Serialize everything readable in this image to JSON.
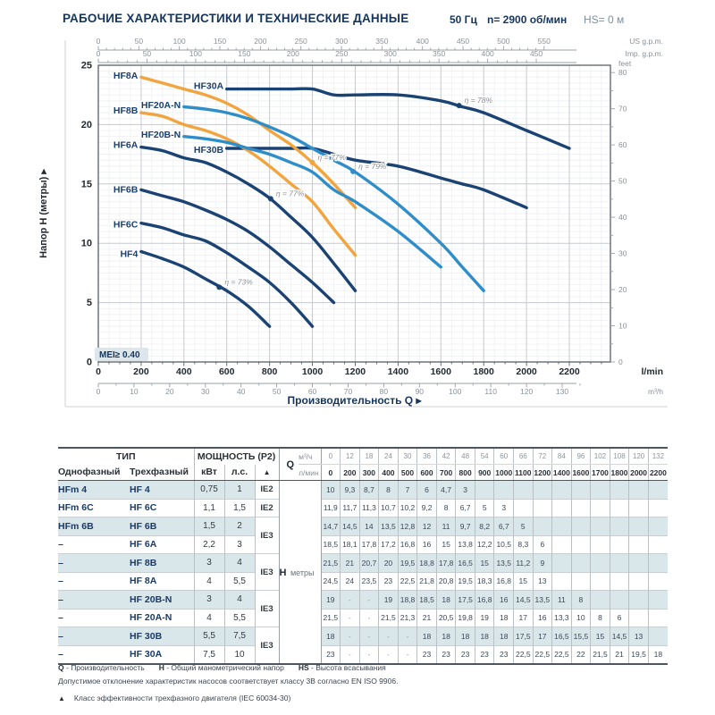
{
  "page": {
    "title": "РАБОЧИЕ ХАРАКТЕРИСТИКИ И ТЕХНИЧЕСКИЕ ДАННЫЕ",
    "frequency": "50 Гц",
    "speed": "n= 2900 об/мин",
    "suction": "HS= 0 м"
  },
  "chart_data": {
    "type": "line",
    "x_axis_title": "Производительность Q",
    "y_axis_title": "Напор H (метры)",
    "units": {
      "x_primary": "l/min",
      "x_secondary": "m³/h",
      "x_top_us": "US g.p.m.",
      "x_top_imp": "Imp. g.p.m.",
      "y_right": "feet"
    },
    "x_range_lmin": [
      0,
      2392
    ],
    "y_range_m": [
      0,
      25
    ],
    "x_ticks_lmin": [
      0,
      200,
      400,
      600,
      800,
      1000,
      1200,
      1400,
      1600,
      1800,
      2000,
      2200
    ],
    "x_ticks_m3h": [
      0,
      10,
      20,
      30,
      40,
      50,
      60,
      70,
      80,
      90,
      100,
      110,
      120,
      130
    ],
    "x_ticks_usgpm": [
      0,
      50,
      100,
      150,
      200,
      250,
      300,
      350,
      400,
      450,
      500,
      550
    ],
    "x_ticks_impgpm": [
      0,
      50,
      100,
      150,
      200,
      250,
      300,
      350,
      400,
      450
    ],
    "y_ticks_m": [
      0,
      5,
      10,
      15,
      20,
      25
    ],
    "y_ticks_feet": [
      0,
      10,
      20,
      30,
      40,
      50,
      60,
      70,
      80
    ],
    "lmin_per_m3h": 16.6667,
    "lmin_per_usgpm": 3.7854,
    "lmin_per_impgpm": 4.5461,
    "feet_per_m": 3.2808,
    "grid_minor_lmin": 50,
    "grid_minor_m": 0.5,
    "mei_label": "MEI≥ 0.40",
    "colors": {
      "navy": "#1a4374",
      "orange": "#f2a43e",
      "blue": "#2f8dc9"
    },
    "series": [
      {
        "name": "HF4",
        "color": "navy",
        "q_lmin": [
          200,
          300,
          400,
          500,
          600,
          700,
          800
        ],
        "h_m": [
          9.3,
          8.7,
          8,
          7,
          6,
          4.7,
          3
        ],
        "label_q": 185,
        "label_h": 9.1
      },
      {
        "name": "HF6C",
        "color": "navy",
        "q_lmin": [
          200,
          300,
          400,
          500,
          600,
          700,
          800,
          900,
          1000
        ],
        "h_m": [
          11.7,
          11.3,
          10.7,
          10.2,
          9.2,
          8,
          6.7,
          5,
          3
        ],
        "label_q": 185,
        "label_h": 11.6
      },
      {
        "name": "HF6B",
        "color": "navy",
        "q_lmin": [
          200,
          300,
          400,
          500,
          600,
          700,
          800,
          900,
          1000,
          1100
        ],
        "h_m": [
          14.5,
          14,
          13.5,
          12.8,
          12,
          11,
          9.7,
          8.2,
          6.7,
          5
        ],
        "label_q": 185,
        "label_h": 14.55
      },
      {
        "name": "HF6A",
        "color": "navy",
        "q_lmin": [
          200,
          300,
          400,
          500,
          600,
          700,
          800,
          900,
          1000,
          1100,
          1200
        ],
        "h_m": [
          18.1,
          17.8,
          17.2,
          16.8,
          16,
          15,
          13.8,
          12.2,
          10.5,
          8.3,
          6
        ],
        "label_q": 185,
        "label_h": 18.3
      },
      {
        "name": "HF30B",
        "color": "navy",
        "q_lmin": [
          600,
          700,
          800,
          900,
          1000,
          1100,
          1200,
          1400,
          1600,
          1700,
          1800,
          2000
        ],
        "h_m": [
          18,
          18,
          18,
          18,
          18,
          17.5,
          17,
          16.5,
          15.5,
          15,
          14.5,
          13
        ],
        "label_q": 585,
        "label_h": 17.9
      },
      {
        "name": "HF30A",
        "color": "navy",
        "q_lmin": [
          600,
          700,
          800,
          900,
          1000,
          1100,
          1200,
          1400,
          1600,
          1700,
          1800,
          2000,
          2200
        ],
        "h_m": [
          23,
          23,
          23,
          23,
          23,
          22.5,
          22.5,
          22.5,
          22,
          21.5,
          21,
          19.5,
          18
        ],
        "label_q": 585,
        "label_h": 23.25
      },
      {
        "name": "HF8A",
        "color": "orange",
        "q_lmin": [
          200,
          300,
          400,
          500,
          600,
          700,
          800,
          900,
          1000,
          1100,
          1200
        ],
        "h_m": [
          24,
          23.5,
          23,
          22.5,
          21.8,
          20.8,
          19.5,
          18.3,
          16.8,
          15,
          13
        ],
        "label_q": 185,
        "label_h": 24.15
      },
      {
        "name": "HF8B",
        "color": "orange",
        "q_lmin": [
          200,
          300,
          400,
          500,
          600,
          700,
          800,
          900,
          1000,
          1100,
          1200
        ],
        "h_m": [
          21,
          20.7,
          20,
          19.5,
          18.8,
          17.8,
          16.5,
          15,
          13.5,
          11.2,
          9
        ],
        "label_q": 185,
        "label_h": 21.2
      },
      {
        "name": "HF20A-N",
        "color": "blue",
        "q_lmin": [
          400,
          500,
          600,
          700,
          800,
          900,
          1000,
          1100,
          1200,
          1400,
          1600,
          1700,
          1800
        ],
        "h_m": [
          21.5,
          21.3,
          21,
          20.5,
          19.8,
          19,
          18,
          17,
          16,
          13.3,
          10,
          8,
          6
        ],
        "label_q": 385,
        "label_h": 21.65
      },
      {
        "name": "HF20B-N",
        "color": "blue",
        "q_lmin": [
          400,
          500,
          600,
          700,
          800,
          900,
          1000,
          1100,
          1200,
          1400,
          1600
        ],
        "h_m": [
          19,
          18.8,
          18.5,
          18,
          17.5,
          16.8,
          16,
          14.5,
          13.5,
          11,
          8
        ],
        "label_q": 385,
        "label_h": 19.15
      }
    ],
    "efficiency_points": [
      {
        "text": "η = 73%",
        "q": 565,
        "h": 6.3,
        "color": "navy"
      },
      {
        "text": "η = 77%",
        "q": 805,
        "h": 13.75,
        "color": "navy"
      },
      {
        "text": "η = 77%",
        "q": 1000,
        "h": 16.8,
        "color": "orange"
      },
      {
        "text": "η = 79%",
        "q": 1190,
        "h": 16.05,
        "color": "blue"
      },
      {
        "text": "η = 78%",
        "q": 1685,
        "h": 21.6,
        "color": "navy"
      }
    ]
  },
  "table": {
    "head": {
      "tip": "ТИП",
      "single": "Однофазный",
      "three": "Трехфазный",
      "power": "МОЩНОСТЬ (P2)",
      "kw": "кВт",
      "hp": "л.с.",
      "eff_symbol": "▲",
      "q": "Q",
      "m3h": "м³/ч",
      "lmin": "л/мин",
      "h_letter": "H",
      "h_unit": "метры",
      "m3h_values": [
        "0",
        "12",
        "18",
        "24",
        "30",
        "36",
        "42",
        "48",
        "54",
        "60",
        "66",
        "72",
        "84",
        "96",
        "102",
        "108",
        "120",
        "132"
      ],
      "lmin_values": [
        "0",
        "200",
        "300",
        "400",
        "500",
        "600",
        "700",
        "800",
        "900",
        "1000",
        "1100",
        "1200",
        "1400",
        "1600",
        "1700",
        "1800",
        "2000",
        "2200"
      ]
    },
    "rows": [
      {
        "single": "HFm 4",
        "three": "HF 4",
        "kw": "0,75",
        "hp": "1",
        "ie": "IE2",
        "ie_span": 1,
        "shaded": true,
        "h": [
          "10",
          "9,3",
          "8,7",
          "8",
          "7",
          "6",
          "4,7",
          "3",
          "",
          "",
          "",
          "",
          "",
          "",
          "",
          "",
          "",
          ""
        ]
      },
      {
        "single": "HFm 6C",
        "three": "HF 6C",
        "kw": "1,1",
        "hp": "1,5",
        "ie": "IE2",
        "ie_span": 1,
        "shaded": false,
        "h": [
          "11,9",
          "11,7",
          "11,3",
          "10,7",
          "10,2",
          "9,2",
          "8",
          "6,7",
          "5",
          "3",
          "",
          "",
          "",
          "",
          "",
          "",
          "",
          ""
        ]
      },
      {
        "single": "HFm 6B",
        "three": "HF 6B",
        "kw": "1,5",
        "hp": "2",
        "ie": "IE3",
        "ie_span": 2,
        "shaded": true,
        "h": [
          "14,7",
          "14,5",
          "14",
          "13,5",
          "12,8",
          "12",
          "11",
          "9,7",
          "8,2",
          "6,7",
          "5",
          "",
          "",
          "",
          "",
          "",
          "",
          ""
        ]
      },
      {
        "single": "–",
        "three": "HF 6A",
        "kw": "2,2",
        "hp": "3",
        "ie": null,
        "shaded": false,
        "h": [
          "18,5",
          "18,1",
          "17,8",
          "17,2",
          "16,8",
          "16",
          "15",
          "13,8",
          "12,2",
          "10,5",
          "8,3",
          "6",
          "",
          "",
          "",
          "",
          "",
          ""
        ]
      },
      {
        "single": "–",
        "three": "HF 8B",
        "kw": "3",
        "hp": "4",
        "ie": "IE3",
        "ie_span": 2,
        "shaded": true,
        "h": [
          "21,5",
          "21",
          "20,7",
          "20",
          "19,5",
          "18,8",
          "17,8",
          "16,5",
          "15",
          "13,5",
          "11,2",
          "9",
          "",
          "",
          "",
          "",
          "",
          ""
        ]
      },
      {
        "single": "–",
        "three": "HF 8A",
        "kw": "4",
        "hp": "5,5",
        "ie": null,
        "shaded": false,
        "h": [
          "24,5",
          "24",
          "23,5",
          "23",
          "22,5",
          "21,8",
          "20,8",
          "19,5",
          "18,3",
          "16,8",
          "15",
          "13",
          "",
          "",
          "",
          "",
          "",
          ""
        ]
      },
      {
        "single": "–",
        "three": "HF 20B-N",
        "kw": "3",
        "hp": "4",
        "ie": "IE3",
        "ie_span": 2,
        "shaded": true,
        "h": [
          "19",
          "-",
          "-",
          "19",
          "18,8",
          "18,5",
          "18",
          "17,5",
          "16,8",
          "16",
          "14,5",
          "13,5",
          "11",
          "8",
          "",
          "",
          "",
          ""
        ]
      },
      {
        "single": "–",
        "three": "HF 20A-N",
        "kw": "4",
        "hp": "5,5",
        "ie": null,
        "shaded": false,
        "h": [
          "21,5",
          "-",
          "-",
          "21,5",
          "21,3",
          "21",
          "20,5",
          "19,8",
          "19",
          "18",
          "17",
          "16",
          "13,3",
          "10",
          "8",
          "6",
          "",
          ""
        ]
      },
      {
        "single": "–",
        "three": "HF 30B",
        "kw": "5,5",
        "hp": "7,5",
        "ie": "IE3",
        "ie_span": 2,
        "shaded": true,
        "h": [
          "18",
          "-",
          "-",
          "-",
          "-",
          "18",
          "18",
          "18",
          "18",
          "18",
          "17,5",
          "17",
          "16,5",
          "15,5",
          "15",
          "14,5",
          "13",
          ""
        ]
      },
      {
        "single": "–",
        "three": "HF 30A",
        "kw": "7,5",
        "hp": "10",
        "ie": null,
        "shaded": false,
        "h": [
          "23",
          "-",
          "-",
          "-",
          "-",
          "23",
          "23",
          "23",
          "23",
          "23",
          "22,5",
          "22,5",
          "22,5",
          "22",
          "21,5",
          "21",
          "19,5",
          "18"
        ]
      }
    ]
  },
  "footnotes": {
    "legend": [
      {
        "term": "Q",
        "desc": "- Производительность"
      },
      {
        "term": "H",
        "desc": "- Общий манометрический напор"
      },
      {
        "term": "HS",
        "desc": "- Высота всасывания"
      }
    ],
    "tolerance": "Допустимое отклонение характеристик насосов соответствует классу 3В согласно EN ISO 9906.",
    "eff_symbol": "▲",
    "eff_note": "Класс эффективности трехфазного двигателя (IEC 60034-30)"
  }
}
